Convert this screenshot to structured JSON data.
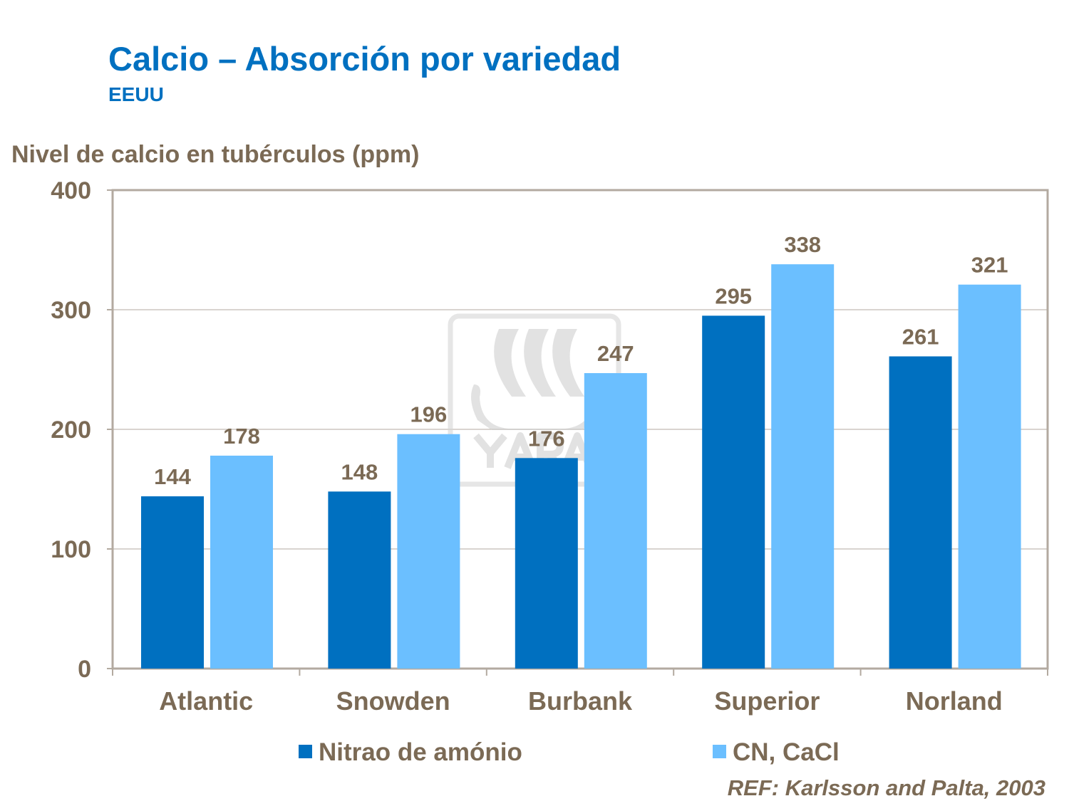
{
  "header": {
    "title": "Calcio – Absorción por variedad",
    "subtitle": "EEUU"
  },
  "chart_data": {
    "type": "bar",
    "title": "Calcio – Absorción por variedad",
    "subtitle": "EEUU",
    "ylabel": "Nivel de calcio en tubérculos (ppm)",
    "xlabel": "",
    "ylim": [
      0,
      400
    ],
    "yticks": [
      0,
      100,
      200,
      300,
      400
    ],
    "grid": true,
    "legend_placement": "bottom",
    "categories": [
      "Atlantic",
      "Snowden",
      "Burbank",
      "Superior",
      "Norland"
    ],
    "series": [
      {
        "name": "Nitrao de amónio",
        "color": "#0070c0",
        "values": [
          144,
          148,
          176,
          295,
          261
        ]
      },
      {
        "name": "CN, CaCl",
        "color": "#6bbfff",
        "values": [
          178,
          196,
          247,
          338,
          321
        ]
      }
    ]
  },
  "reference": "REF: Karlsson and Palta, 2003",
  "watermark": {
    "logo_text": "YARA",
    "icon": "viking-ship-logo"
  }
}
